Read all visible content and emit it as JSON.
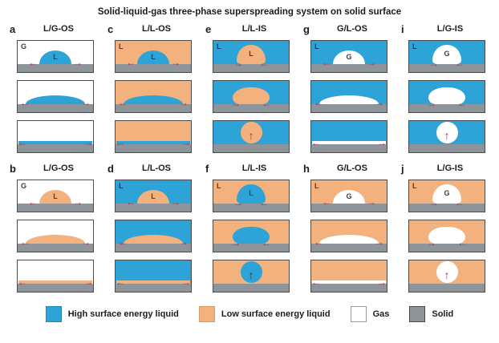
{
  "title": "Solid-liquid-gas three-phase superspreading system on solid surface",
  "colors": {
    "high_surface_energy_liquid": "#2EA3D7",
    "low_surface_energy_liquid": "#F3B17E",
    "gas": "#FFFFFF",
    "solid": "#8D949A",
    "arrow_red": "#A3394B",
    "arrow_dark": "#2F2F2F"
  },
  "icons": {
    "arrow_left": "←",
    "arrow_right": "→",
    "arrow_up": "↑"
  },
  "panels": [
    {
      "letter": "a",
      "title": "L/G-OS",
      "bg": "gas",
      "bg_label": "G",
      "droplet": "high",
      "droplet_label": "L",
      "mode": "outward"
    },
    {
      "letter": "c",
      "title": "L/L-OS",
      "bg": "low",
      "bg_label": "L",
      "droplet": "high",
      "droplet_label": "L",
      "mode": "outward"
    },
    {
      "letter": "e",
      "title": "L/L-IS",
      "bg": "high",
      "bg_label": "L",
      "droplet": "low",
      "droplet_label": "L",
      "mode": "inward",
      "up_arrow": "red"
    },
    {
      "letter": "g",
      "title": "G/L-OS",
      "bg": "high",
      "bg_label": "L",
      "droplet": "gas",
      "droplet_label": "G",
      "mode": "outward"
    },
    {
      "letter": "i",
      "title": "L/G-IS",
      "bg": "high",
      "bg_label": "L",
      "droplet": "gas",
      "droplet_label": "G",
      "mode": "inward",
      "up_arrow": "red"
    },
    {
      "letter": "b",
      "title": "L/G-OS",
      "bg": "gas",
      "bg_label": "G",
      "droplet": "low",
      "droplet_label": "L",
      "mode": "outward"
    },
    {
      "letter": "d",
      "title": "L/L-OS",
      "bg": "high",
      "bg_label": "L",
      "droplet": "low",
      "droplet_label": "L",
      "mode": "outward"
    },
    {
      "letter": "f",
      "title": "L/L-IS",
      "bg": "low",
      "bg_label": "L",
      "droplet": "high",
      "droplet_label": "L",
      "mode": "inward",
      "up_arrow": "dark"
    },
    {
      "letter": "h",
      "title": "G/L-OS",
      "bg": "low",
      "bg_label": "L",
      "droplet": "gas",
      "droplet_label": "G",
      "mode": "outward"
    },
    {
      "letter": "j",
      "title": "L/G-IS",
      "bg": "low",
      "bg_label": "L",
      "droplet": "gas",
      "droplet_label": "G",
      "mode": "inward",
      "up_arrow": "red"
    }
  ],
  "legend": [
    {
      "label": "High surface energy liquid",
      "color": "#2EA3D7"
    },
    {
      "label": "Low surface energy liquid",
      "color": "#F3B17E"
    },
    {
      "label": "Gas",
      "color": "#FFFFFF"
    },
    {
      "label": "Solid",
      "color": "#8D949A"
    }
  ]
}
